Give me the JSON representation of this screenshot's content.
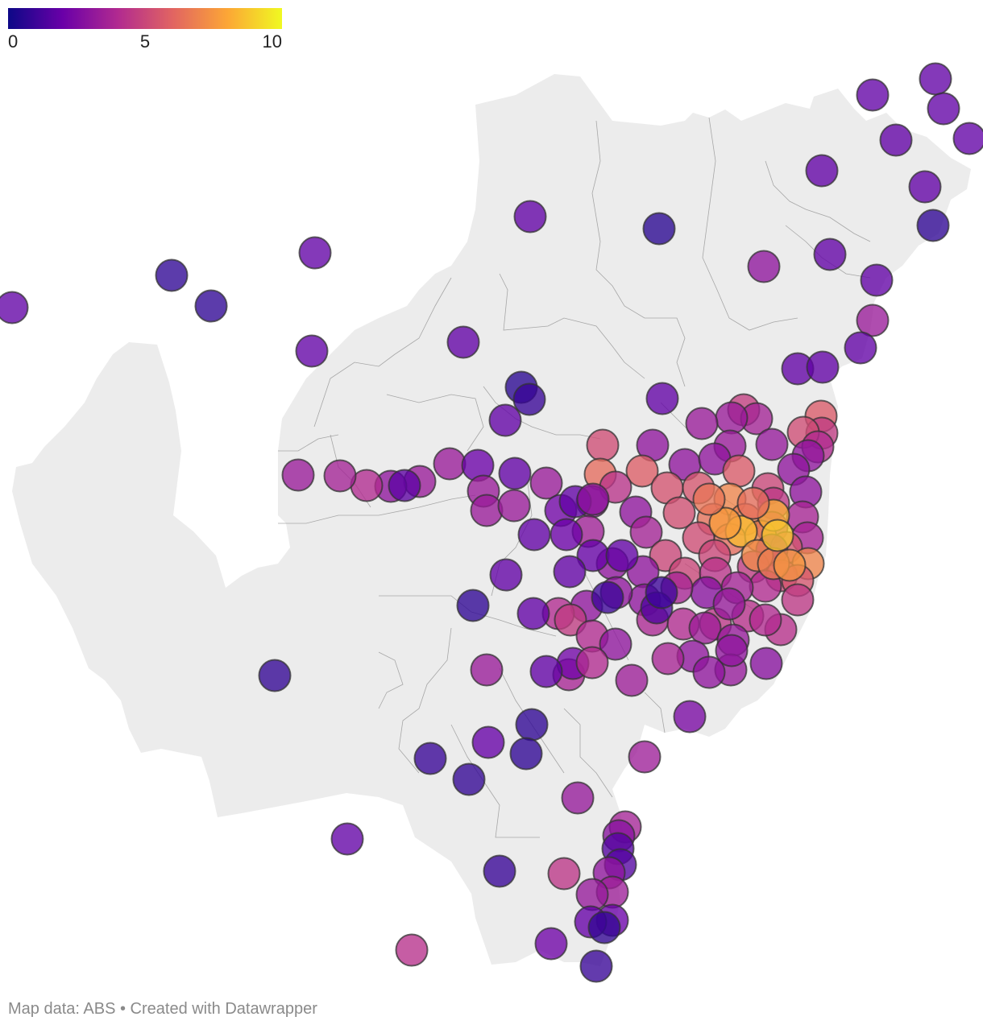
{
  "legend": {
    "tick_min": "0",
    "tick_mid": "5",
    "tick_max": "10",
    "min": 0,
    "max": 10,
    "colors": [
      "#0d0887",
      "#6a00a8",
      "#b12a90",
      "#e16462",
      "#fca636",
      "#f0f921"
    ]
  },
  "map": {
    "land_color": "#ececec",
    "boundary_color": "#9a9a9a",
    "bubble_opacity": 0.78
  },
  "footer": {
    "text": "Map data: ABS • Created with Datawrapper"
  }
}
